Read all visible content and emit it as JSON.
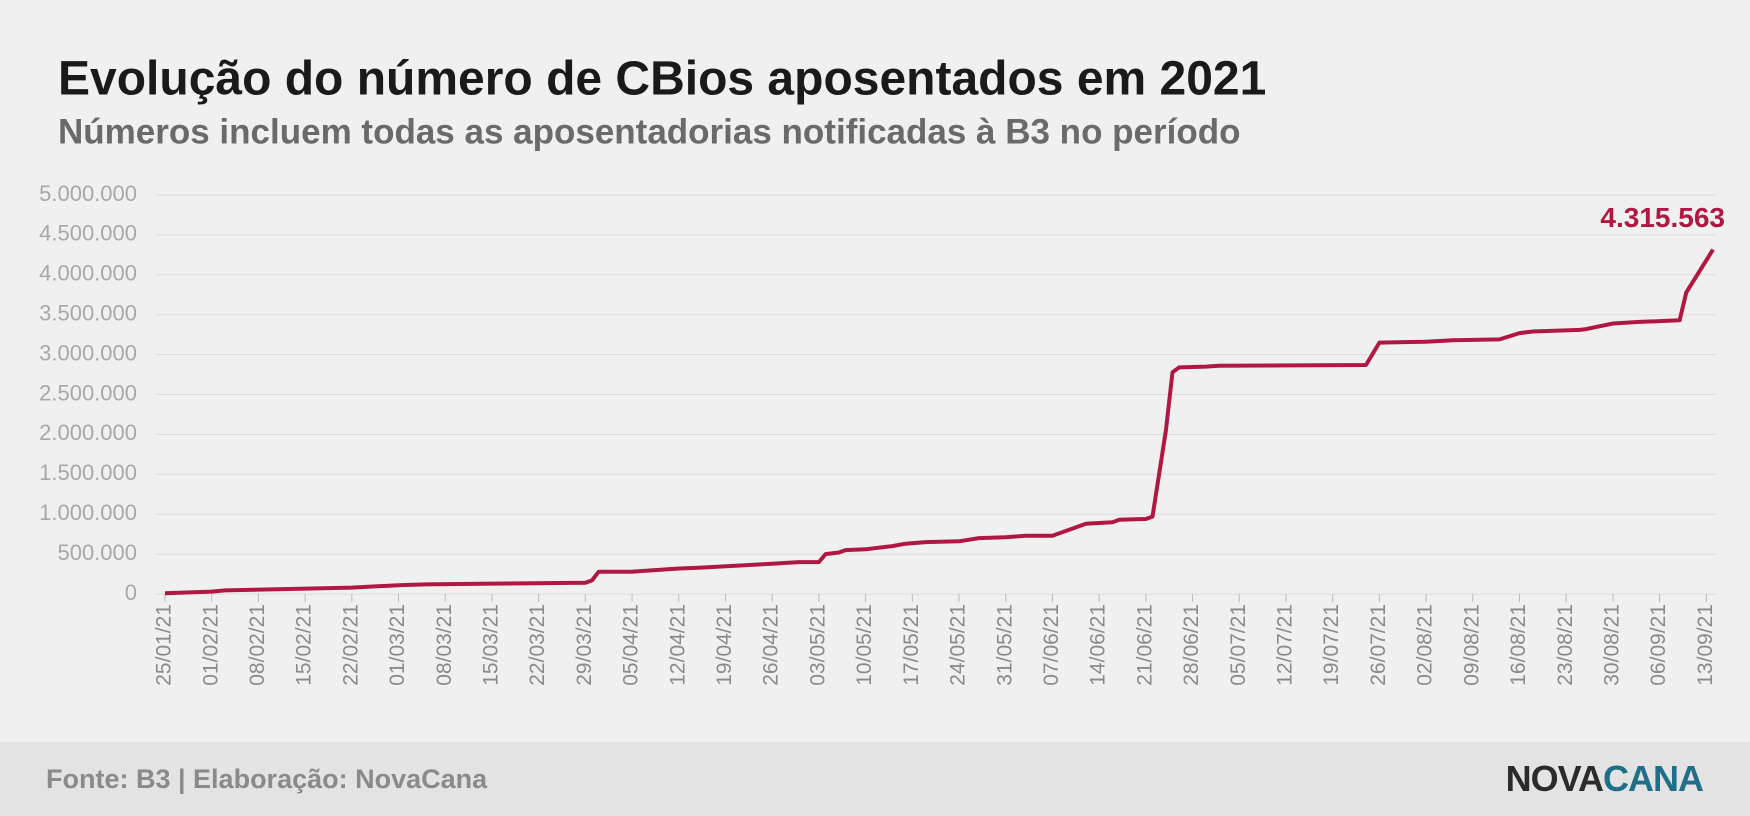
{
  "chart_data": {
    "type": "line",
    "title": "Evolução do número de CBios aposentados em 2021",
    "subtitle": "Números incluem todas as aposentadorias notificadas à B3 no período",
    "color": "#b01842",
    "x": [
      "2021-01-25",
      "2021-02-01",
      "2021-02-03",
      "2021-02-22",
      "2021-03-01",
      "2021-03-05",
      "2021-03-15",
      "2021-03-29",
      "2021-03-30",
      "2021-03-31",
      "2021-04-05",
      "2021-04-12",
      "2021-04-15",
      "2021-04-26",
      "2021-04-30",
      "2021-05-03",
      "2021-05-04",
      "2021-05-06",
      "2021-05-07",
      "2021-05-10",
      "2021-05-13",
      "2021-05-14",
      "2021-05-16",
      "2021-05-19",
      "2021-05-24",
      "2021-05-27",
      "2021-05-31",
      "2021-06-03",
      "2021-06-07",
      "2021-06-10",
      "2021-06-12",
      "2021-06-16",
      "2021-06-17",
      "2021-06-21",
      "2021-06-22",
      "2021-06-24",
      "2021-06-25",
      "2021-06-26",
      "2021-06-30",
      "2021-07-02",
      "2021-07-24",
      "2021-07-26",
      "2021-08-02",
      "2021-08-06",
      "2021-08-13",
      "2021-08-16",
      "2021-08-18",
      "2021-08-25",
      "2021-08-26",
      "2021-08-30",
      "2021-09-03",
      "2021-09-09",
      "2021-09-10",
      "2021-09-14"
    ],
    "values": [
      10000,
      30000,
      45000,
      80000,
      110000,
      120000,
      130000,
      140000,
      170000,
      280000,
      280000,
      320000,
      330000,
      380000,
      400000,
      400000,
      500000,
      520000,
      550000,
      560000,
      590000,
      600000,
      630000,
      650000,
      660000,
      700000,
      710000,
      730000,
      730000,
      820000,
      880000,
      900000,
      930000,
      940000,
      970000,
      2050000,
      2780000,
      2840000,
      2850000,
      2860000,
      2870000,
      3150000,
      3160000,
      3180000,
      3190000,
      3270000,
      3290000,
      3310000,
      3320000,
      3390000,
      3410000,
      3430000,
      3780000,
      4315563
    ],
    "value_labels": [
      null,
      null,
      null,
      null,
      null,
      null,
      null,
      null,
      null,
      null,
      null,
      null,
      null,
      null,
      null,
      null,
      null,
      null,
      null,
      null,
      null,
      null,
      null,
      null,
      null,
      null,
      null,
      null,
      null,
      null,
      null,
      null,
      null,
      null,
      null,
      null,
      null,
      null,
      null,
      null,
      null,
      null,
      null,
      null,
      null,
      null,
      null,
      null,
      null,
      null,
      null,
      null,
      null,
      "4.315.563"
    ],
    "xlim": [
      "2021-01-25",
      "2021-09-14"
    ],
    "xticks": [
      {
        "value": "2021-01-25",
        "label": "25/01/21"
      },
      {
        "value": "2021-02-01",
        "label": "01/02/21"
      },
      {
        "value": "2021-02-08",
        "label": "08/02/21"
      },
      {
        "value": "2021-02-15",
        "label": "15/02/21"
      },
      {
        "value": "2021-02-22",
        "label": "22/02/21"
      },
      {
        "value": "2021-03-01",
        "label": "01/03/21"
      },
      {
        "value": "2021-03-08",
        "label": "08/03/21"
      },
      {
        "value": "2021-03-15",
        "label": "15/03/21"
      },
      {
        "value": "2021-03-22",
        "label": "22/03/21"
      },
      {
        "value": "2021-03-29",
        "label": "29/03/21"
      },
      {
        "value": "2021-04-05",
        "label": "05/04/21"
      },
      {
        "value": "2021-04-12",
        "label": "12/04/21"
      },
      {
        "value": "2021-04-19",
        "label": "19/04/21"
      },
      {
        "value": "2021-04-26",
        "label": "26/04/21"
      },
      {
        "value": "2021-05-03",
        "label": "03/05/21"
      },
      {
        "value": "2021-05-10",
        "label": "10/05/21"
      },
      {
        "value": "2021-05-17",
        "label": "17/05/21"
      },
      {
        "value": "2021-05-24",
        "label": "24/05/21"
      },
      {
        "value": "2021-05-31",
        "label": "31/05/21"
      },
      {
        "value": "2021-06-07",
        "label": "07/06/21"
      },
      {
        "value": "2021-06-14",
        "label": "14/06/21"
      },
      {
        "value": "2021-06-21",
        "label": "21/06/21"
      },
      {
        "value": "2021-06-28",
        "label": "28/06/21"
      },
      {
        "value": "2021-07-05",
        "label": "05/07/21"
      },
      {
        "value": "2021-07-12",
        "label": "12/07/21"
      },
      {
        "value": "2021-07-19",
        "label": "19/07/21"
      },
      {
        "value": "2021-07-26",
        "label": "26/07/21"
      },
      {
        "value": "2021-08-02",
        "label": "02/08/21"
      },
      {
        "value": "2021-08-09",
        "label": "09/08/21"
      },
      {
        "value": "2021-08-16",
        "label": "16/08/21"
      },
      {
        "value": "2021-08-23",
        "label": "23/08/21"
      },
      {
        "value": "2021-08-30",
        "label": "30/08/21"
      },
      {
        "value": "2021-09-06",
        "label": "06/09/21"
      },
      {
        "value": "2021-09-13",
        "label": "13/09/21"
      }
    ],
    "ylim": [
      0,
      5000000
    ],
    "yticks": [
      0,
      {
        "value": 500000,
        "label": "500.000"
      },
      {
        "value": 1000000,
        "label": "1.000.000"
      },
      {
        "value": 1500000,
        "label": "1.500.000"
      },
      {
        "value": 2000000,
        "label": "2.000.000"
      },
      {
        "value": 2500000,
        "label": "2.500.000"
      },
      {
        "value": 3000000,
        "label": "3.000.000"
      },
      {
        "value": 3500000,
        "label": "3.500.000"
      },
      {
        "value": 4000000,
        "label": "4.000.000"
      },
      {
        "value": 4500000,
        "label": "4.500.000"
      },
      {
        "value": 5000000,
        "label": "5.000.000"
      }
    ],
    "grid": true
  },
  "footer": {
    "source": "Fonte: B3 | Elaboração: NovaCana",
    "logo": [
      "NOVA",
      "CANA"
    ]
  }
}
